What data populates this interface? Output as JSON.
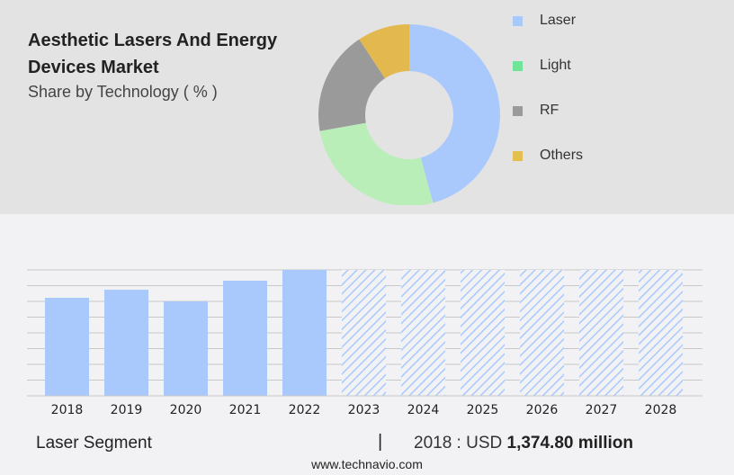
{
  "header": {
    "title": "Aesthetic Lasers And Energy Devices Market",
    "subtitle": "Share by Technology ( % )"
  },
  "chart_data": [
    {
      "type": "pie",
      "donut": true,
      "categories": [
        "Laser",
        "Light",
        "RF",
        "Others"
      ],
      "values": [
        45.8,
        26.4,
        18.5,
        9.3
      ],
      "colors": [
        "#a9c9fc",
        "#b9eeb9",
        "#9a9a9a",
        "#e3b84f"
      ],
      "legend_colors": [
        "#a9c9fc",
        "#6fe49a",
        "#9a9a9a",
        "#e3bf4f"
      ],
      "legend": "right"
    },
    {
      "type": "bar",
      "categories": [
        "2018",
        "2019",
        "2020",
        "2021",
        "2022",
        "2023",
        "2024",
        "2025",
        "2026",
        "2027",
        "2028"
      ],
      "values": [
        1374.8,
        1488,
        1324,
        1614,
        1766,
        null,
        null,
        null,
        null,
        null,
        null
      ],
      "forecast": [
        "2023",
        "2024",
        "2025",
        "2026",
        "2027",
        "2028"
      ],
      "ylabel": "",
      "grid": true,
      "color": "#a9c9fc"
    }
  ],
  "footer": {
    "segment": "Laser Segment",
    "separator": "|",
    "year_label": "2018 : USD",
    "value": "1,374.80 million",
    "site": "www.technavio.com"
  }
}
